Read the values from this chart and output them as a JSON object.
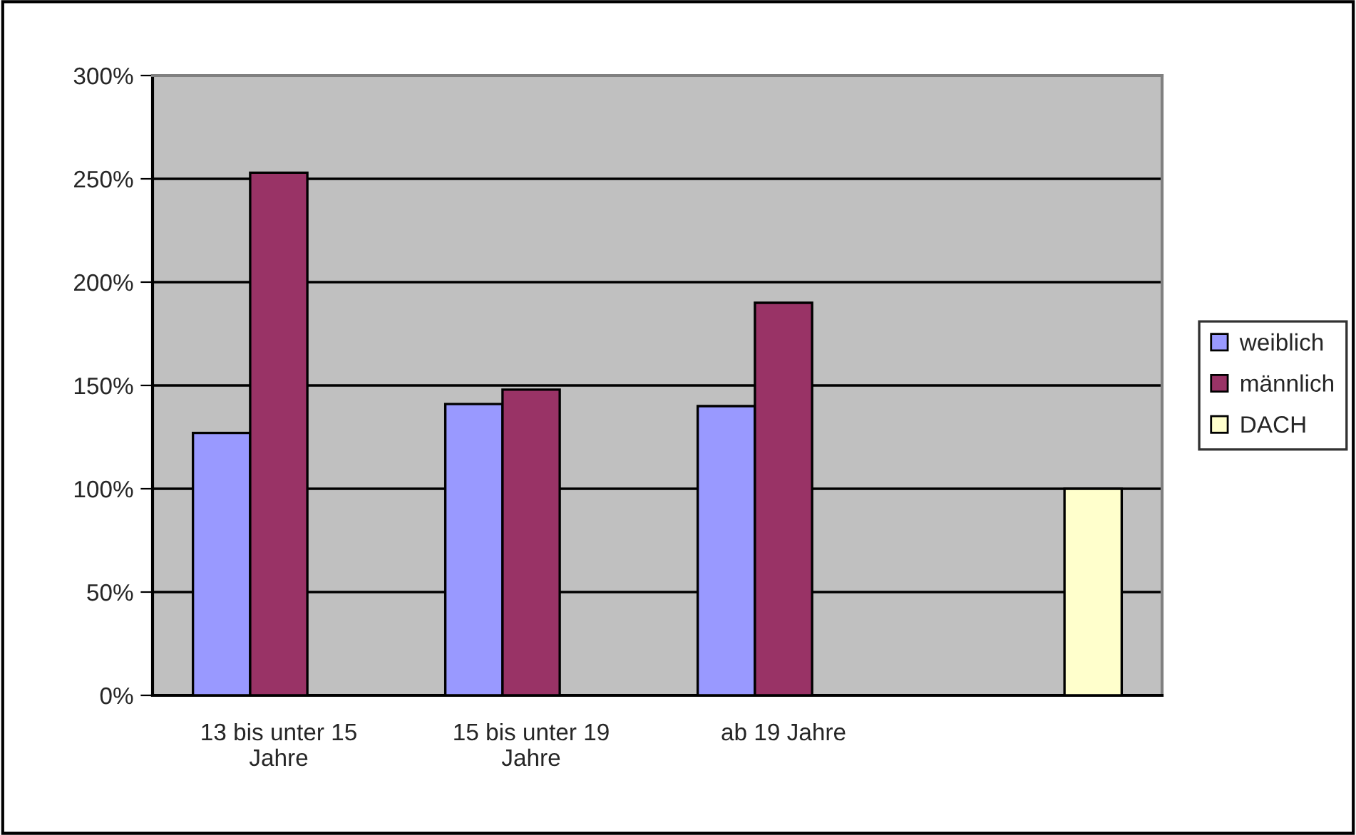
{
  "chart_data": {
    "type": "bar",
    "categories": [
      "13 bis unter 15\nJahre",
      "15 bis unter 19\nJahre",
      "ab 19 Jahre",
      null
    ],
    "series": [
      {
        "name": "weiblich",
        "color": "#9999ff",
        "values": [
          127,
          141,
          140,
          null
        ]
      },
      {
        "name": "männlich",
        "color": "#993366",
        "values": [
          253,
          148,
          190,
          null
        ]
      },
      {
        "name": "DACH",
        "color": "#ffffcc",
        "values": [
          null,
          null,
          null,
          100
        ]
      }
    ],
    "ylim": [
      0,
      300
    ],
    "yticks": [
      {
        "value": 0,
        "label": "0%"
      },
      {
        "value": 50,
        "label": "50%"
      },
      {
        "value": 100,
        "label": "100%"
      },
      {
        "value": 150,
        "label": "150%"
      },
      {
        "value": 200,
        "label": "200%"
      },
      {
        "value": 250,
        "label": "250%"
      },
      {
        "value": 300,
        "label": "300%"
      }
    ],
    "grid": "y",
    "legend": "right"
  }
}
